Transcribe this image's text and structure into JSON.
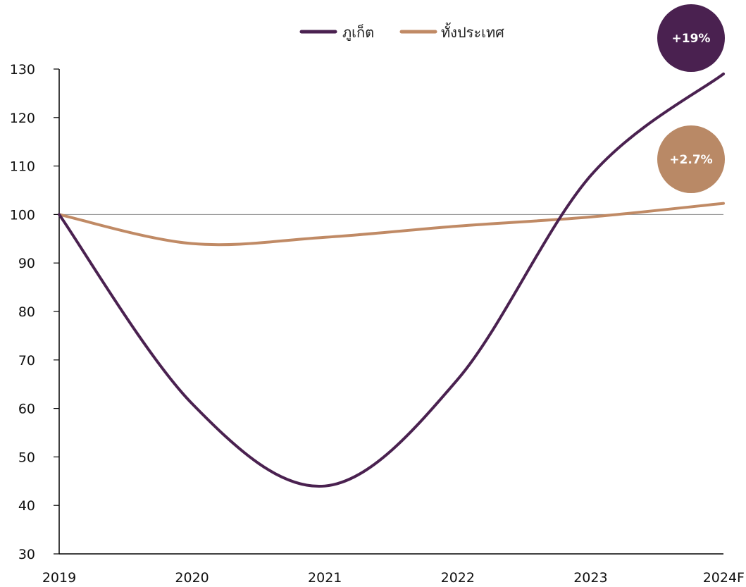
{
  "chart_data": {
    "type": "line",
    "title": "",
    "xlabel": "",
    "ylabel": "",
    "categories": [
      "2019",
      "2020",
      "2021",
      "2022",
      "2023",
      "2024F"
    ],
    "ylim": [
      30,
      130
    ],
    "yticks": [
      30,
      40,
      50,
      60,
      70,
      80,
      90,
      100,
      110,
      120,
      130
    ],
    "reference_line": 100,
    "grid": false,
    "legend_position": "top-center",
    "series": [
      {
        "name": "ภูเก็ต",
        "color": "#4a2150",
        "values": [
          100,
          61,
          44,
          66,
          108,
          129
        ]
      },
      {
        "name": "ทั้งประเทศ",
        "color": "#c08a65",
        "values": [
          100,
          94,
          95.3,
          97.6,
          99.5,
          102.3
        ]
      }
    ],
    "annotations": [
      {
        "text": "+19%",
        "series": "ภูเก็ต",
        "color": "#4a2150"
      },
      {
        "text": "+2.7%",
        "series": "ทั้งประเทศ",
        "color": "#b98966"
      }
    ]
  }
}
